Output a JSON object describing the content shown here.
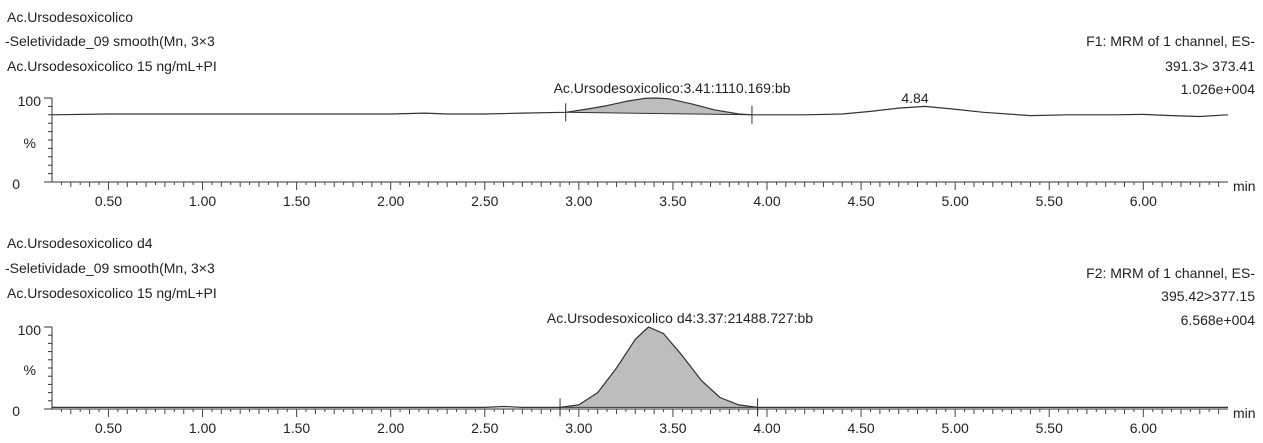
{
  "chart_data": [
    {
      "type": "line",
      "header_left": [
        "Ac.Ursodesoxicolico",
        "-Seletividade_09 smooth(Mn, 3×3",
        "Ac.Ursodesoxicolico 15 ng/mL+PI"
      ],
      "header_right": [
        "F1: MRM of 1 channel, ES-",
        "391.3> 373.41",
        "1.026e+004"
      ],
      "peak_label": "Ac.Ursodesoxicolico:3.41:1110.169:bb",
      "secondary_label": "4.84",
      "y_ticks": [
        "100",
        "%",
        "0"
      ],
      "x_unit": "min",
      "x_ticks": [
        "0.50",
        "1.00",
        "1.50",
        "2.00",
        "2.50",
        "3.00",
        "3.50",
        "4.00",
        "4.50",
        "5.00",
        "5.50",
        "6.00"
      ],
      "xlim": [
        0.2,
        6.45
      ],
      "ylim": [
        0,
        100
      ],
      "peak_region": [
        2.93,
        3.92
      ],
      "x": [
        0.2,
        0.5,
        1.0,
        1.5,
        2.0,
        2.18,
        2.3,
        2.5,
        2.7,
        2.93,
        3.05,
        3.15,
        3.25,
        3.35,
        3.41,
        3.48,
        3.6,
        3.72,
        3.85,
        3.92,
        4.0,
        4.2,
        4.4,
        4.55,
        4.7,
        4.84,
        4.98,
        5.15,
        5.4,
        5.6,
        5.85,
        6.0,
        6.15,
        6.3,
        6.45
      ],
      "y": [
        80,
        81,
        81,
        81,
        81,
        82,
        81,
        81,
        82,
        83,
        87,
        91,
        96,
        99.5,
        100,
        99,
        93,
        86,
        81,
        80,
        80,
        80,
        81,
        84,
        88,
        90,
        87,
        83,
        79,
        80,
        80,
        80.5,
        79,
        78,
        80
      ]
    },
    {
      "type": "line",
      "header_left": [
        "Ac.Ursodesoxicolico d4",
        "-Seletividade_09 smooth(Mn, 3×3",
        "Ac.Ursodesoxicolico 15 ng/mL+PI"
      ],
      "header_right": [
        "F2: MRM of 1 channel, ES-",
        "395.42>377.15",
        "6.568e+004"
      ],
      "peak_label": "Ac.Ursodesoxicolico d4:3.37:21488.727:bb",
      "secondary_label": "",
      "y_ticks": [
        "100",
        "%",
        "0"
      ],
      "x_unit": "min",
      "x_ticks": [
        "0.50",
        "1.00",
        "1.50",
        "2.00",
        "2.50",
        "3.00",
        "3.50",
        "4.00",
        "4.50",
        "5.00",
        "5.50",
        "6.00"
      ],
      "xlim": [
        0.2,
        6.45
      ],
      "ylim": [
        0,
        100
      ],
      "peak_region": [
        2.9,
        3.95
      ],
      "x": [
        0.2,
        1.0,
        2.0,
        2.5,
        2.6,
        2.7,
        2.9,
        3.0,
        3.1,
        3.2,
        3.3,
        3.37,
        3.45,
        3.55,
        3.65,
        3.75,
        3.85,
        3.95,
        4.1,
        5.0,
        6.0,
        6.45
      ],
      "y": [
        2,
        2,
        2,
        2,
        3,
        2,
        2,
        5,
        20,
        50,
        85,
        100,
        92,
        65,
        35,
        14,
        5,
        2,
        2,
        2,
        2,
        2
      ]
    }
  ]
}
